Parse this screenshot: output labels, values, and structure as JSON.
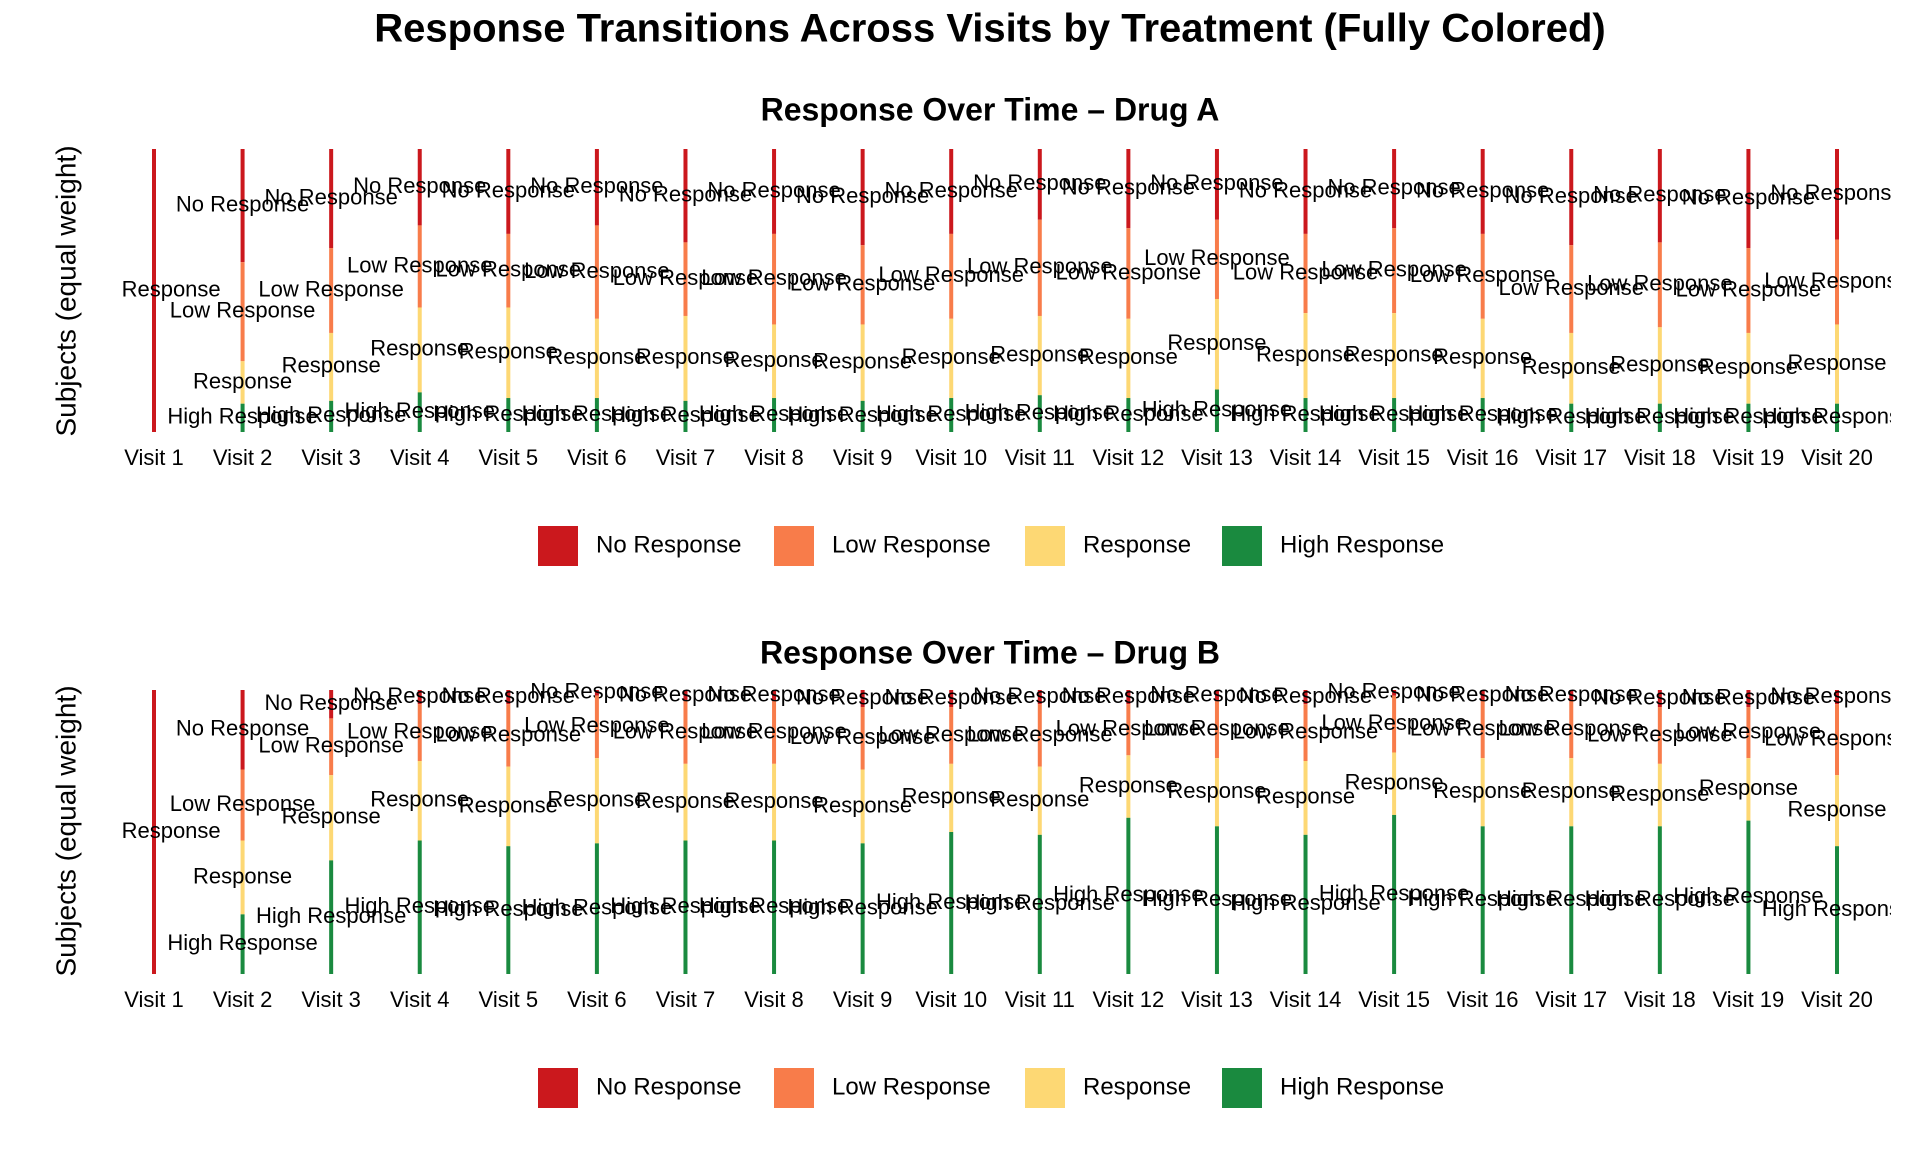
{
  "title": "Response Transitions Across Visits by Treatment (Fully Colored)",
  "chart_data": [
    {
      "type": "alluvial",
      "title": "Response Over Time – Drug A",
      "y_label": "Subjects (equal weight)",
      "categories": [
        "Visit 1",
        "Visit 2",
        "Visit 3",
        "Visit 4",
        "Visit 5",
        "Visit 6",
        "Visit 7",
        "Visit 8",
        "Visit 9",
        "Visit 10",
        "Visit 11",
        "Visit 12",
        "Visit 13",
        "Visit 14",
        "Visit 15",
        "Visit 16",
        "Visit 17",
        "Visit 18",
        "Visit 19",
        "Visit 20"
      ],
      "series": [
        {
          "name": "No Response",
          "color": "#cb181d",
          "values": [
            100,
            40,
            35,
            27,
            30,
            27,
            33,
            30,
            34,
            30,
            25,
            28,
            25,
            30,
            28,
            30,
            34,
            33,
            35,
            32
          ]
        },
        {
          "name": "Low Response",
          "color": "#f87c4a",
          "values": [
            0,
            35,
            30,
            29,
            26,
            33,
            26,
            32,
            28,
            30,
            34,
            32,
            28,
            28,
            30,
            30,
            31,
            30,
            30,
            30
          ]
        },
        {
          "name": "Response",
          "color": "#fdd874",
          "values": [
            0,
            15,
            24,
            30,
            32,
            28,
            30,
            26,
            27,
            28,
            28,
            28,
            32,
            30,
            30,
            28,
            25,
            27,
            25,
            28
          ]
        },
        {
          "name": "High Response",
          "color": "#1a8a3f",
          "values": [
            0,
            10,
            11,
            14,
            12,
            12,
            11,
            12,
            11,
            12,
            13,
            12,
            15,
            12,
            12,
            12,
            10,
            10,
            10,
            10
          ]
        }
      ],
      "legend": "bottom"
    },
    {
      "type": "alluvial",
      "title": "Response Over Time – Drug B",
      "y_label": "Subjects (equal weight)",
      "categories": [
        "Visit 1",
        "Visit 2",
        "Visit 3",
        "Visit 4",
        "Visit 5",
        "Visit 6",
        "Visit 7",
        "Visit 8",
        "Visit 9",
        "Visit 10",
        "Visit 11",
        "Visit 12",
        "Visit 13",
        "Visit 14",
        "Visit 15",
        "Visit 16",
        "Visit 17",
        "Visit 18",
        "Visit 19",
        "Visit 20"
      ],
      "series": [
        {
          "name": "No Response",
          "color": "#cb181d",
          "values": [
            100,
            28,
            10,
            5,
            5,
            2,
            4,
            4,
            6,
            6,
            5,
            5,
            4,
            5,
            2,
            4,
            4,
            6,
            6,
            5
          ]
        },
        {
          "name": "Low Response",
          "color": "#f87c4a",
          "values": [
            0,
            25,
            20,
            20,
            22,
            22,
            22,
            22,
            22,
            20,
            22,
            18,
            20,
            20,
            20,
            20,
            20,
            20,
            18,
            25
          ]
        },
        {
          "name": "Response",
          "color": "#fdd874",
          "values": [
            0,
            26,
            30,
            28,
            28,
            30,
            27,
            27,
            26,
            24,
            24,
            22,
            24,
            26,
            22,
            24,
            24,
            22,
            22,
            25
          ]
        },
        {
          "name": "High Response",
          "color": "#1a8a3f",
          "values": [
            0,
            21,
            40,
            47,
            45,
            46,
            47,
            47,
            46,
            50,
            49,
            55,
            52,
            49,
            56,
            52,
            52,
            52,
            54,
            45
          ]
        }
      ],
      "legend": "bottom"
    }
  ]
}
